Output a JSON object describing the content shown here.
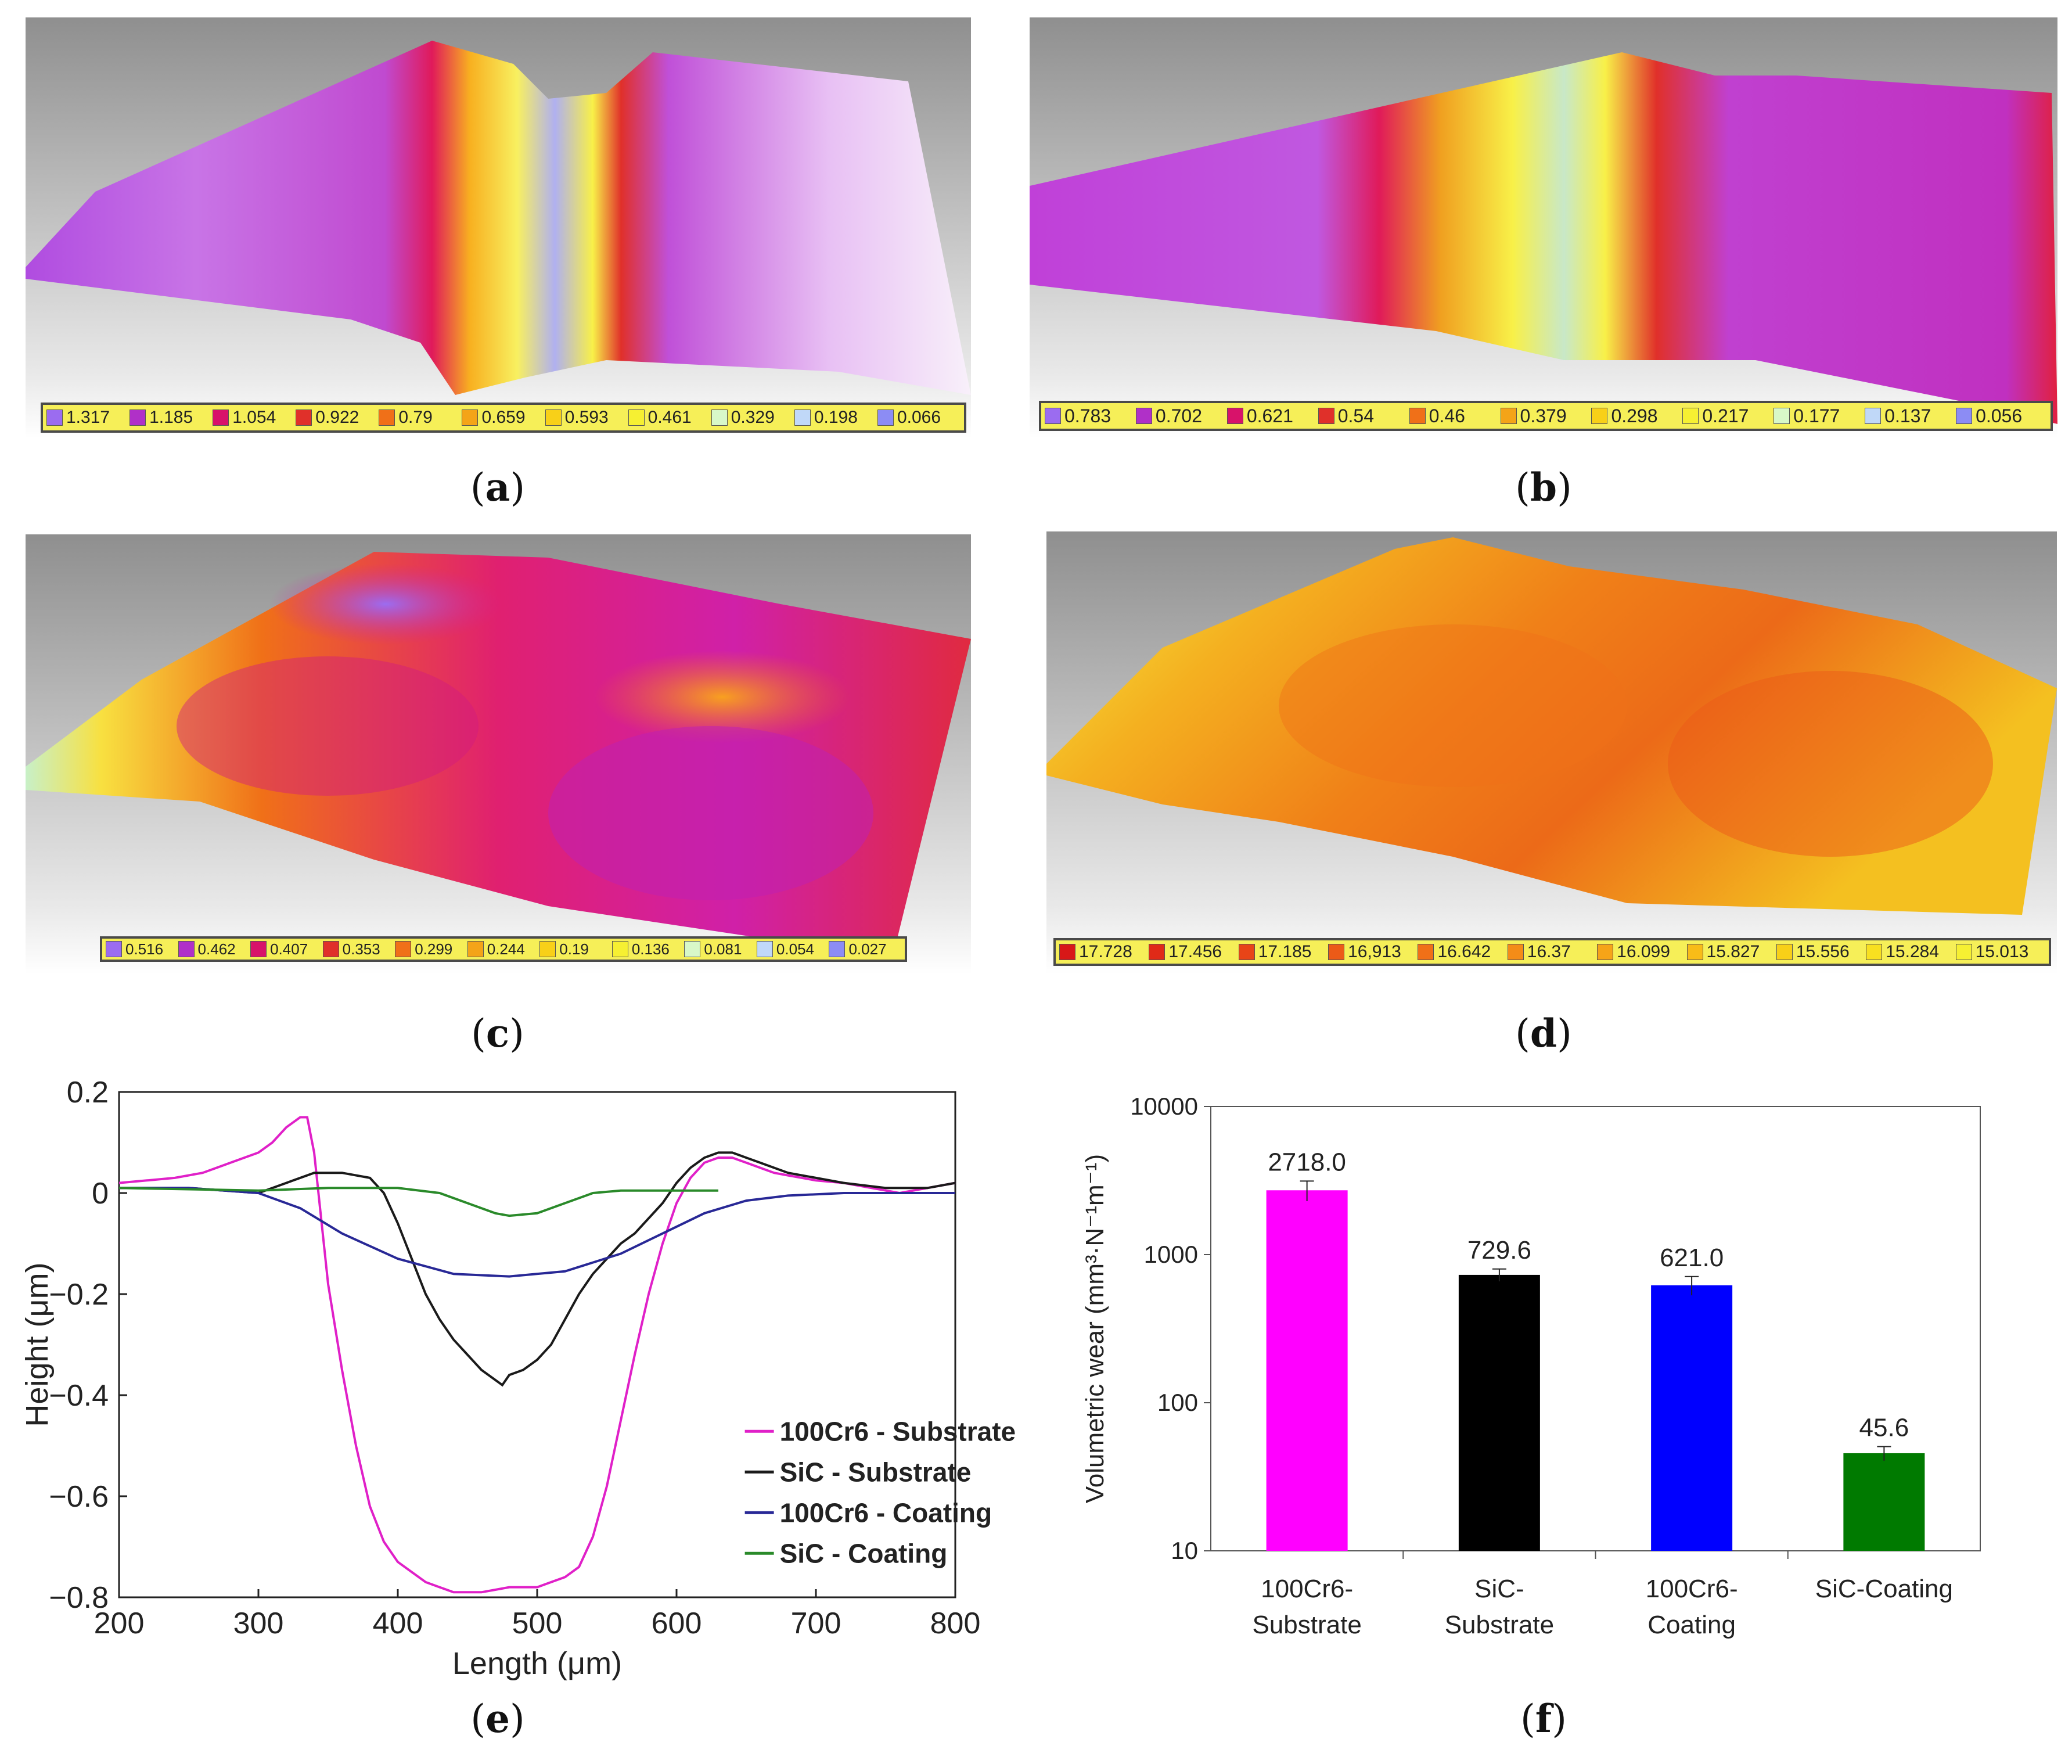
{
  "captions": {
    "a": "a",
    "b": "b",
    "c": "c",
    "d": "d",
    "e": "e",
    "f": "f"
  },
  "surface_legends": {
    "a": {
      "labels": [
        "1.317",
        "1.185",
        "1.054",
        "0.922",
        "0.79",
        "0.659",
        "0.593",
        "0.461",
        "0.329",
        "0.198",
        "0.066"
      ],
      "colors": [
        "#9b6cf0",
        "#b030c8",
        "#d8126a",
        "#e0302a",
        "#f07018",
        "#f4a418",
        "#f8d018",
        "#f6f032",
        "#d8f8c8",
        "#c0d8f8",
        "#8c8cf4"
      ]
    },
    "b": {
      "labels": [
        "0.783",
        "0.702",
        "0.621",
        "0.54",
        "0.46",
        "0.379",
        "0.298",
        "0.217",
        "0.177",
        "0.137",
        "0.056"
      ],
      "colors": [
        "#9b6cf0",
        "#b030c8",
        "#d8126a",
        "#e0302a",
        "#f07018",
        "#f4a418",
        "#f8d018",
        "#f6f032",
        "#d8f8c8",
        "#c0d8f8",
        "#8c8cf4"
      ]
    },
    "c": {
      "labels": [
        "0.516",
        "0.462",
        "0.407",
        "0.353",
        "0.299",
        "0.244",
        "0.19",
        "0.136",
        "0.081",
        "0.054",
        "0.027"
      ],
      "colors": [
        "#9b6cf0",
        "#b030c8",
        "#d8126a",
        "#e0302a",
        "#f07018",
        "#f4a418",
        "#f8d018",
        "#f6f032",
        "#d8f8c8",
        "#c0d8f8",
        "#8c8cf4"
      ]
    },
    "d": {
      "labels": [
        "17.728",
        "17.456",
        "17.185",
        "16,913",
        "16.642",
        "16.37",
        "16.099",
        "15.827",
        "15.556",
        "15.284",
        "15.013"
      ],
      "colors": [
        "#d81818",
        "#e02a18",
        "#e84418",
        "#ec5a18",
        "#f07018",
        "#f48c18",
        "#f6a418",
        "#f8bc18",
        "#f8d018",
        "#f8e020",
        "#f6f032"
      ]
    }
  },
  "chart_data": [
    {
      "id": "e",
      "type": "line",
      "xlabel": "Length (μm)",
      "ylabel": "Height (μm)",
      "xlim": [
        200,
        800
      ],
      "ylim": [
        -0.8,
        0.2
      ],
      "xticks": [
        "200",
        "300",
        "400",
        "500",
        "600",
        "700",
        "800"
      ],
      "yticks": [
        "0.2",
        "0",
        "−0.2",
        "−0.4",
        "−0.6",
        "−0.8"
      ],
      "legend_position": "lower-right",
      "series": [
        {
          "name": "100Cr6 - Substrate",
          "color": "#e020c8",
          "x": [
            200,
            220,
            240,
            260,
            280,
            300,
            310,
            320,
            330,
            335,
            340,
            345,
            350,
            360,
            370,
            380,
            390,
            400,
            410,
            420,
            430,
            440,
            450,
            460,
            470,
            480,
            490,
            500,
            510,
            520,
            530,
            540,
            550,
            560,
            570,
            580,
            590,
            600,
            610,
            620,
            630,
            640,
            650,
            660,
            670,
            680,
            690,
            700,
            720,
            740,
            760,
            780,
            800
          ],
          "y": [
            0.02,
            0.025,
            0.03,
            0.04,
            0.06,
            0.08,
            0.1,
            0.13,
            0.15,
            0.15,
            0.08,
            -0.05,
            -0.18,
            -0.35,
            -0.5,
            -0.62,
            -0.69,
            -0.73,
            -0.75,
            -0.77,
            -0.78,
            -0.79,
            -0.79,
            -0.79,
            -0.785,
            -0.78,
            -0.78,
            -0.78,
            -0.77,
            -0.76,
            -0.74,
            -0.68,
            -0.58,
            -0.45,
            -0.32,
            -0.2,
            -0.1,
            -0.02,
            0.03,
            0.06,
            0.07,
            0.07,
            0.06,
            0.05,
            0.04,
            0.035,
            0.03,
            0.025,
            0.02,
            0.01,
            0.0,
            0.01,
            0.02
          ]
        },
        {
          "name": "SiC - Substrate",
          "color": "#1a1a1a",
          "x": [
            200,
            250,
            300,
            320,
            340,
            360,
            380,
            390,
            400,
            410,
            420,
            430,
            440,
            450,
            460,
            470,
            475,
            480,
            490,
            500,
            510,
            520,
            530,
            540,
            550,
            560,
            570,
            580,
            590,
            600,
            610,
            620,
            630,
            640,
            650,
            660,
            680,
            700,
            720,
            750,
            780,
            800
          ],
          "y": [
            0.01,
            0.01,
            0.0,
            0.02,
            0.04,
            0.04,
            0.03,
            0.0,
            -0.06,
            -0.13,
            -0.2,
            -0.25,
            -0.29,
            -0.32,
            -0.35,
            -0.37,
            -0.38,
            -0.36,
            -0.35,
            -0.33,
            -0.3,
            -0.25,
            -0.2,
            -0.16,
            -0.13,
            -0.1,
            -0.08,
            -0.05,
            -0.02,
            0.02,
            0.05,
            0.07,
            0.08,
            0.08,
            0.07,
            0.06,
            0.04,
            0.03,
            0.02,
            0.01,
            0.01,
            0.02
          ]
        },
        {
          "name": "100Cr6 - Coating",
          "color": "#282896",
          "x": [
            200,
            250,
            300,
            330,
            360,
            400,
            440,
            480,
            520,
            560,
            590,
            620,
            650,
            680,
            720,
            760,
            800
          ],
          "y": [
            0.01,
            0.01,
            0.0,
            -0.03,
            -0.08,
            -0.13,
            -0.16,
            -0.165,
            -0.155,
            -0.12,
            -0.08,
            -0.04,
            -0.015,
            -0.005,
            0.0,
            0.0,
            0.0
          ]
        },
        {
          "name": "SiC - Coating",
          "color": "#2a8a2a",
          "x": [
            200,
            300,
            350,
            400,
            430,
            450,
            470,
            480,
            500,
            520,
            540,
            560,
            580,
            600,
            630
          ],
          "y": [
            0.01,
            0.005,
            0.01,
            0.01,
            0.0,
            -0.02,
            -0.04,
            -0.045,
            -0.04,
            -0.02,
            0.0,
            0.005,
            0.005,
            0.005,
            0.005
          ]
        }
      ]
    },
    {
      "id": "f",
      "type": "bar",
      "ylabel": "Volumetric wear (mm³·N⁻¹m⁻¹)",
      "yscale": "log",
      "ylim": [
        10,
        10000
      ],
      "yticks": [
        "10000",
        "1000",
        "100",
        "10"
      ],
      "categories": [
        [
          "100Cr6-",
          "Substrate"
        ],
        [
          "SiC-",
          "Substrate"
        ],
        [
          "100Cr6-",
          "Coating"
        ],
        [
          "SiC-Coating"
        ]
      ],
      "values": [
        2718.0,
        729.6,
        621.0,
        45.6
      ],
      "value_labels": [
        "2718.0",
        "729.6",
        "621.0",
        "45.6"
      ],
      "errors": [
        420,
        70,
        90,
        5
      ],
      "colors": [
        "#ff00ff",
        "#000000",
        "#0000ff",
        "#007a00"
      ]
    }
  ]
}
